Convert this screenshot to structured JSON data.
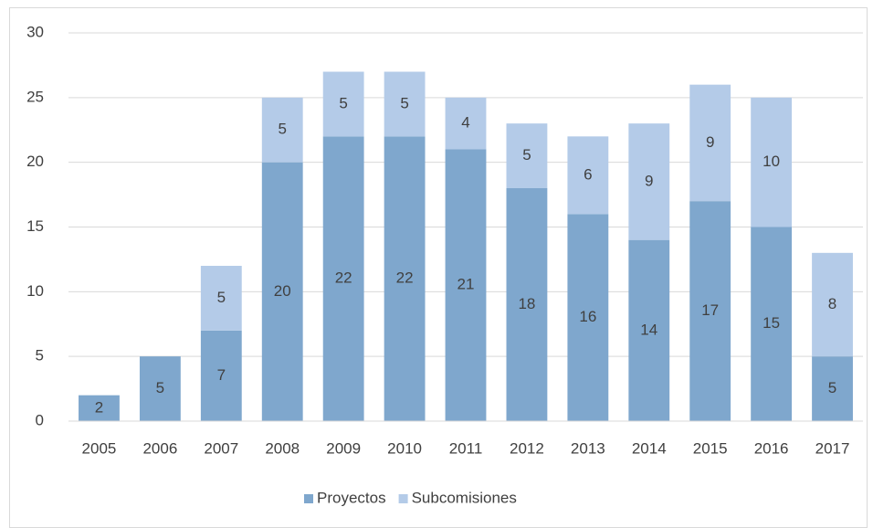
{
  "chart_data": {
    "type": "stacked_bar",
    "categories": [
      "2005",
      "2006",
      "2007",
      "2008",
      "2009",
      "2010",
      "2011",
      "2012",
      "2013",
      "2014",
      "2015",
      "2016",
      "2017"
    ],
    "series": [
      {
        "name": "Proyectos",
        "color": "#7fa7cd",
        "values": [
          2,
          5,
          7,
          20,
          22,
          22,
          21,
          18,
          16,
          14,
          17,
          15,
          5
        ]
      },
      {
        "name": "Subcomisiones",
        "color": "#b4cbe8",
        "values": [
          0,
          0,
          5,
          5,
          5,
          5,
          4,
          5,
          6,
          9,
          9,
          10,
          8
        ]
      }
    ],
    "ylim": [
      0,
      30
    ],
    "yticks": [
      0,
      5,
      10,
      15,
      20,
      25,
      30
    ],
    "grid": true,
    "legend": "bottom"
  }
}
